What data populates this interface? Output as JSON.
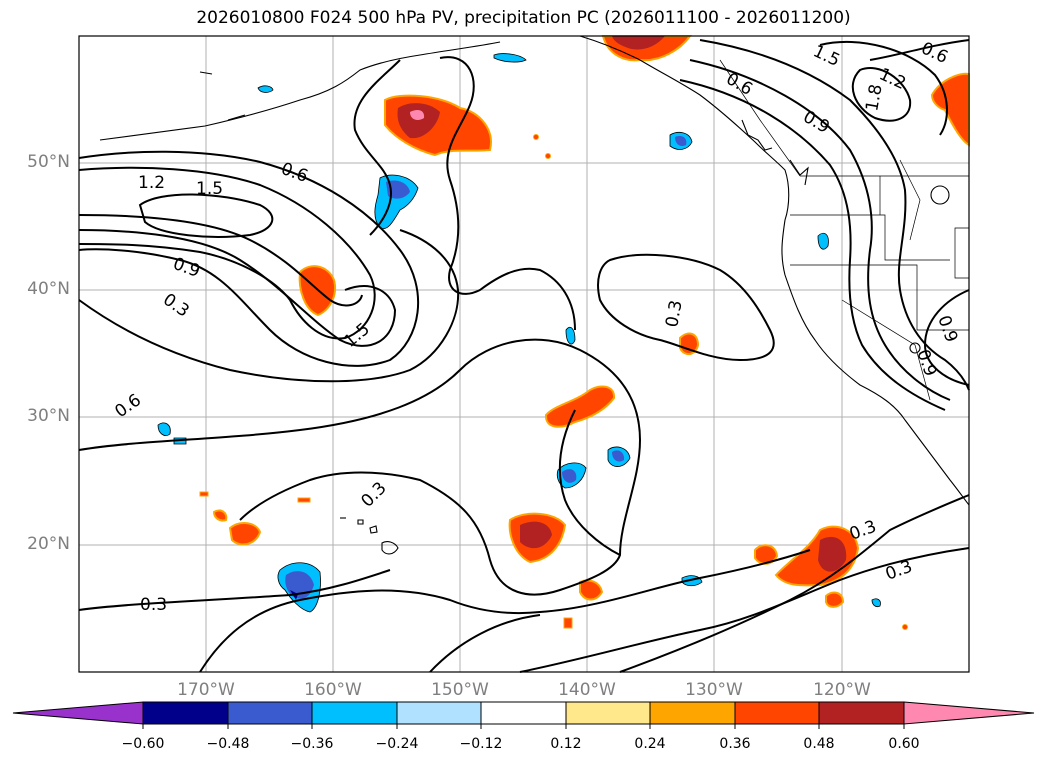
{
  "title": "2026010800 F024 500 hPa PV, precipitation PC (2026011100 - 2026011200)",
  "map": {
    "lat_labels": [
      "50°N",
      "40°N",
      "30°N",
      "20°N"
    ],
    "lon_labels": [
      "170°W",
      "160°W",
      "150°W",
      "140°W",
      "130°W",
      "120°W"
    ],
    "contour_labels": [
      "0.6",
      "1.2",
      "1.5",
      "0.9",
      "0.3",
      "1.5",
      "0.6",
      "0.3",
      "0.3",
      "0.3",
      "1.5",
      "1.2",
      "0.6",
      "0.6",
      "0.9",
      "1.8",
      "0.9",
      "0.9",
      "0.3",
      "0.3"
    ]
  },
  "colorbar": {
    "ticks": [
      "−0.60",
      "−0.48",
      "−0.36",
      "−0.24",
      "−0.12",
      "0.12",
      "0.24",
      "0.36",
      "0.48",
      "0.60"
    ],
    "colors": [
      "#9932cc",
      "#00008b",
      "#3a5bcf",
      "#00bfff",
      "#b0e2ff",
      "#ffffff",
      "#ffe88c",
      "#ffa500",
      "#ff4500",
      "#b22222",
      "#ff88b0"
    ]
  }
}
